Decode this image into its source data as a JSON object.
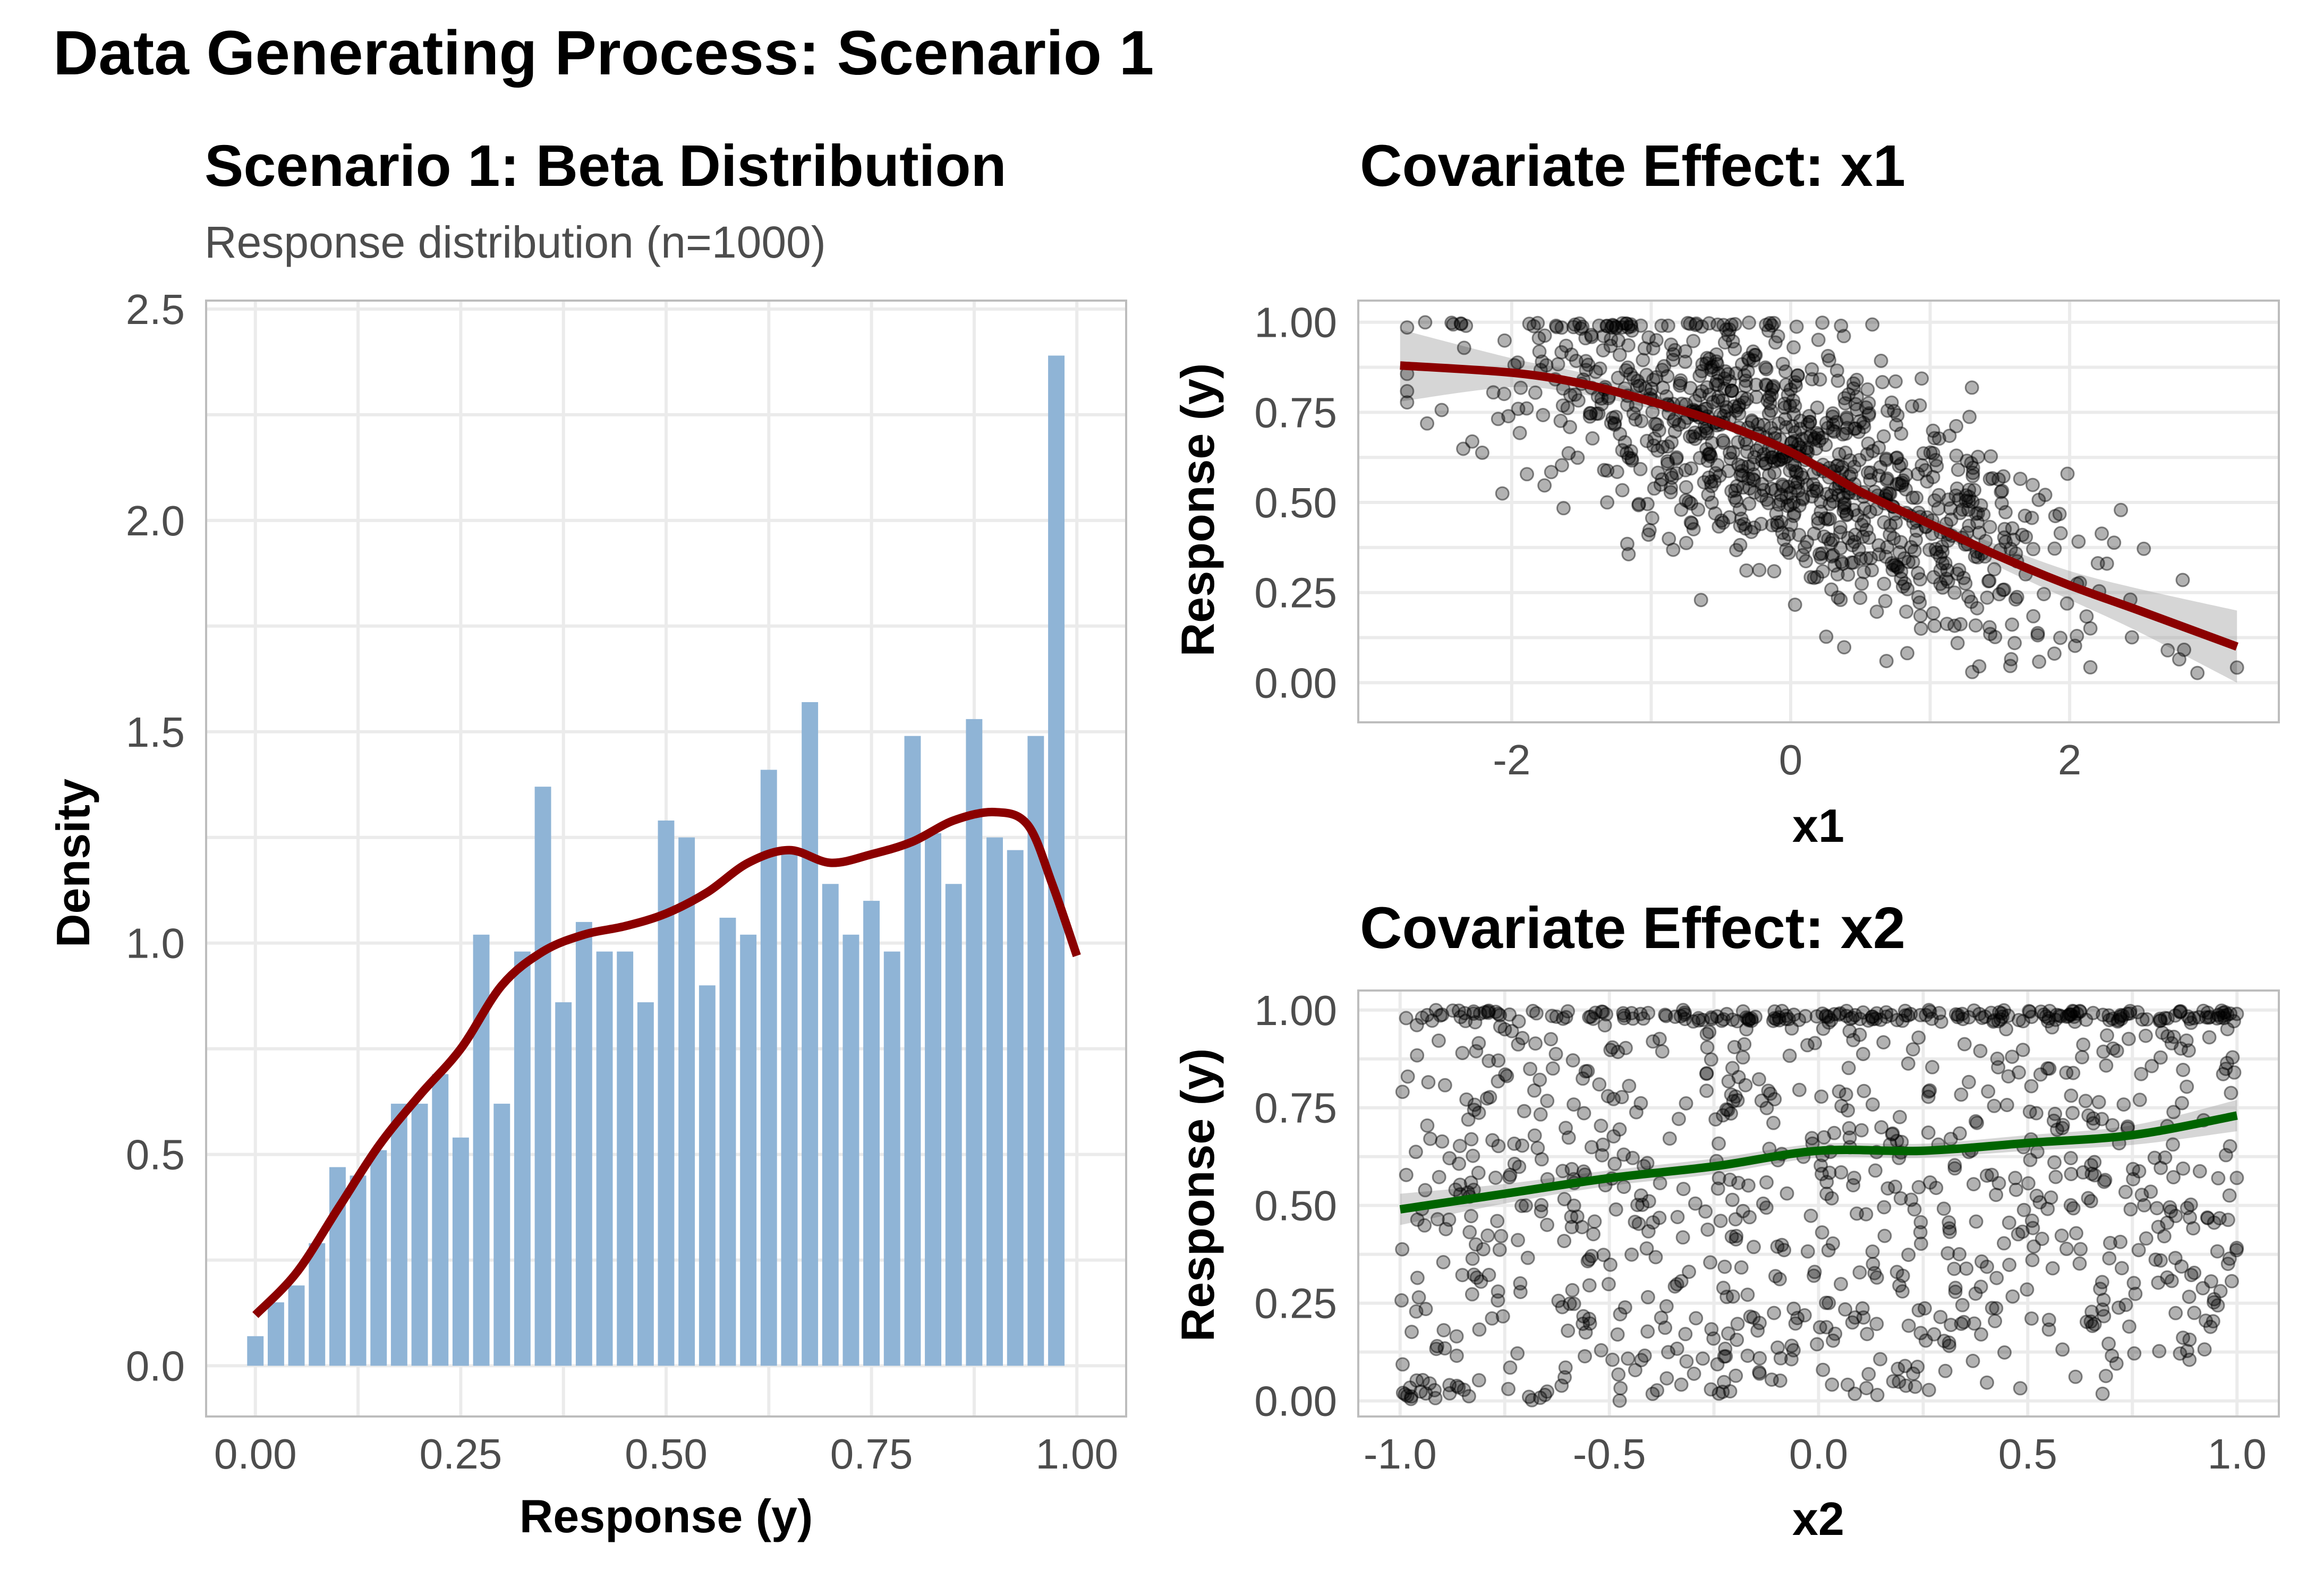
{
  "figure": {
    "title": "Data Generating Process: Scenario 1"
  },
  "chart_data": [
    {
      "type": "bar",
      "title": "Scenario 1: Beta Distribution",
      "subtitle": "Response distribution (n=1000)",
      "xlabel": "Response (y)",
      "ylabel": "Density",
      "xlim": [
        -0.06,
        1.06
      ],
      "ylim": [
        -0.12,
        2.52
      ],
      "xticks": [
        0.0,
        0.25,
        0.5,
        0.75,
        1.0
      ],
      "xtick_labels": [
        "0.00",
        "0.25",
        "0.50",
        "0.75",
        "1.00"
      ],
      "yticks": [
        0.0,
        0.5,
        1.0,
        1.5,
        2.0,
        2.5
      ],
      "ytick_labels": [
        "0.0",
        "0.5",
        "1.0",
        "1.5",
        "2.0",
        "2.5"
      ],
      "bin_width": 0.025,
      "bin_centers": [
        0.0,
        0.025,
        0.05,
        0.075,
        0.1,
        0.125,
        0.15,
        0.175,
        0.2,
        0.225,
        0.25,
        0.275,
        0.3,
        0.325,
        0.35,
        0.375,
        0.4,
        0.425,
        0.45,
        0.475,
        0.5,
        0.525,
        0.55,
        0.575,
        0.6,
        0.625,
        0.65,
        0.675,
        0.7,
        0.725,
        0.75,
        0.775,
        0.8,
        0.825,
        0.85,
        0.875,
        0.9,
        0.925,
        0.95,
        0.975,
        1.0
      ],
      "values": [
        0.07,
        0.15,
        0.19,
        0.29,
        0.47,
        0.45,
        0.51,
        0.62,
        0.62,
        0.69,
        0.54,
        1.02,
        0.62,
        0.98,
        1.37,
        0.86,
        1.05,
        0.98,
        0.98,
        0.86,
        1.29,
        1.25,
        0.9,
        1.06,
        1.02,
        1.41,
        1.22,
        1.57,
        1.14,
        1.02,
        1.1,
        0.98,
        1.49,
        1.26,
        1.14,
        1.53,
        1.25,
        1.22,
        1.49,
        2.39,
        0.0
      ],
      "bar_color": "#8fb4d6",
      "density_curve": {
        "color": "#8b0000",
        "x": [
          0.0,
          0.05,
          0.1,
          0.15,
          0.2,
          0.25,
          0.3,
          0.35,
          0.4,
          0.45,
          0.5,
          0.55,
          0.6,
          0.65,
          0.7,
          0.75,
          0.8,
          0.85,
          0.9,
          0.94,
          0.97,
          1.0
        ],
        "y": [
          0.12,
          0.22,
          0.37,
          0.52,
          0.64,
          0.75,
          0.9,
          0.98,
          1.02,
          1.04,
          1.07,
          1.12,
          1.19,
          1.22,
          1.19,
          1.21,
          1.24,
          1.29,
          1.31,
          1.28,
          1.14,
          0.97
        ]
      }
    },
    {
      "type": "scatter",
      "title": "Covariate Effect: x1",
      "xlabel": "x1",
      "ylabel": "Response (y)",
      "xlim": [
        -3.1,
        3.5
      ],
      "ylim": [
        -0.11,
        1.06
      ],
      "xticks": [
        -2,
        0,
        2
      ],
      "xtick_labels": [
        "-2",
        "0",
        "2"
      ],
      "yticks": [
        0.0,
        0.25,
        0.5,
        0.75,
        1.0
      ],
      "ytick_labels": [
        "0.00",
        "0.25",
        "0.50",
        "0.75",
        "1.00"
      ],
      "n_points": 1000,
      "point_color": "#000000",
      "smooth": {
        "color": "#8b0000",
        "x": [
          -2.8,
          -2.0,
          -1.5,
          -1.0,
          -0.5,
          0.0,
          0.5,
          1.0,
          1.5,
          2.0,
          2.5,
          3.2
        ],
        "y": [
          0.88,
          0.86,
          0.83,
          0.78,
          0.72,
          0.64,
          0.53,
          0.44,
          0.35,
          0.27,
          0.2,
          0.1
        ],
        "se": [
          0.1,
          0.04,
          0.03,
          0.02,
          0.015,
          0.015,
          0.02,
          0.02,
          0.03,
          0.04,
          0.06,
          0.1
        ]
      }
    },
    {
      "type": "scatter",
      "title": "Covariate Effect: x2",
      "xlabel": "x2",
      "ylabel": "Response (y)",
      "xlim": [
        -1.1,
        1.1
      ],
      "ylim": [
        -0.04,
        1.05
      ],
      "xticks": [
        -1.0,
        -0.5,
        0.0,
        0.5,
        1.0
      ],
      "xtick_labels": [
        "-1.0",
        "-0.5",
        "0.0",
        "0.5",
        "1.0"
      ],
      "yticks": [
        0.0,
        0.25,
        0.5,
        0.75,
        1.0
      ],
      "ytick_labels": [
        "0.00",
        "0.25",
        "0.50",
        "0.75",
        "1.00"
      ],
      "n_points": 1000,
      "point_color": "#000000",
      "smooth": {
        "color": "#006400",
        "x": [
          -1.0,
          -0.75,
          -0.5,
          -0.25,
          0.0,
          0.25,
          0.5,
          0.75,
          1.0
        ],
        "y": [
          0.49,
          0.53,
          0.57,
          0.6,
          0.64,
          0.64,
          0.66,
          0.68,
          0.73
        ],
        "se": [
          0.04,
          0.025,
          0.02,
          0.02,
          0.018,
          0.018,
          0.02,
          0.025,
          0.04
        ]
      }
    }
  ]
}
